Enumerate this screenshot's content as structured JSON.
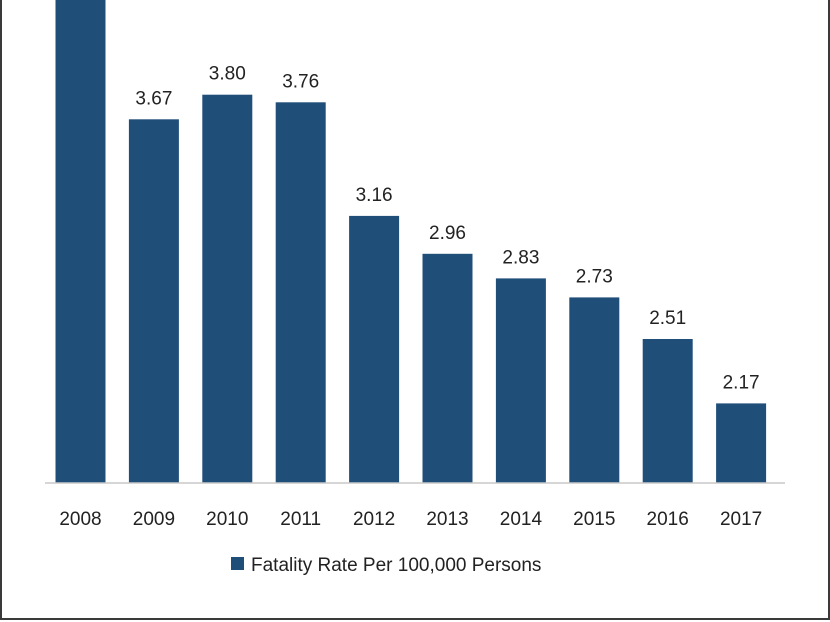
{
  "chart_data": {
    "type": "bar",
    "categories": [
      "2008",
      "2009",
      "2010",
      "2011",
      "2012",
      "2013",
      "2014",
      "2015",
      "2016",
      "2017"
    ],
    "values": [
      4.3,
      3.67,
      3.8,
      3.76,
      3.16,
      2.96,
      2.83,
      2.73,
      2.51,
      2.17
    ],
    "data_labels": [
      "",
      "3.67",
      "3.80",
      "3.76",
      "3.16",
      "2.96",
      "2.83",
      "2.73",
      "2.51",
      "2.17"
    ],
    "ylim": [
      1.75,
      4.3
    ],
    "grid": false,
    "legend_position": "bottom-center",
    "colors": {
      "bar": "#1f4e79",
      "axis": "#c8c8c8",
      "frame": "#3a3a3a"
    },
    "series": [
      {
        "name": "Fatality Rate Per 100,000 Persons",
        "values": [
          4.3,
          3.67,
          3.8,
          3.76,
          3.16,
          2.96,
          2.83,
          2.73,
          2.51,
          2.17
        ]
      }
    ]
  }
}
